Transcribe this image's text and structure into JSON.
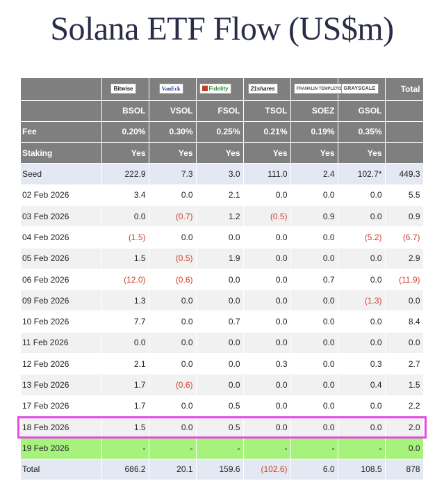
{
  "title": "Solana ETF Flow (US$m)",
  "colors": {
    "header_bg": "#7f7f7f",
    "seed_bg": "#e4e8f2",
    "pending_bg": "#a6f27d",
    "negative": "#d0402a",
    "highlight": "#e34ae6"
  },
  "issuers": [
    "Bitwise",
    "VanEck",
    "Fidelity",
    "21shares",
    "FRANKLIN TEMPLETON",
    "GRAYSCALE"
  ],
  "total_label": "Total",
  "tickers": [
    "BSOL",
    "VSOL",
    "FSOL",
    "TSOL",
    "SOEZ",
    "GSOL"
  ],
  "fee": {
    "label": "Fee",
    "values": [
      "0.20%",
      "0.30%",
      "0.25%",
      "0.21%",
      "0.19%",
      "0.35%"
    ]
  },
  "staking": {
    "label": "Staking",
    "values": [
      "Yes",
      "Yes",
      "Yes",
      "Yes",
      "Yes",
      "Yes"
    ]
  },
  "chart_data": {
    "type": "table",
    "title": "Solana ETF Flow (US$m)",
    "columns": [
      "BSOL",
      "VSOL",
      "FSOL",
      "TSOL",
      "SOEZ",
      "GSOL",
      "Total"
    ],
    "rows": [
      {
        "label": "Seed",
        "cells": [
          "222.9",
          "7.3",
          "3.0",
          "111.0",
          "2.4",
          "102.7*",
          "449.3"
        ]
      },
      {
        "label": "02 Feb 2026",
        "cells": [
          "3.4",
          "0.0",
          "2.1",
          "0.0",
          "0.0",
          "0.0",
          "5.5"
        ]
      },
      {
        "label": "03 Feb 2026",
        "cells": [
          "0.0",
          "(0.7)",
          "1.2",
          "(0.5)",
          "0.9",
          "0.0",
          "0.9"
        ]
      },
      {
        "label": "04 Feb 2026",
        "cells": [
          "(1.5)",
          "0.0",
          "0.0",
          "0.0",
          "0.0",
          "(5.2)",
          "(6.7)"
        ]
      },
      {
        "label": "05 Feb 2026",
        "cells": [
          "1.5",
          "(0.5)",
          "1.9",
          "0.0",
          "0.0",
          "0.0",
          "2.9"
        ]
      },
      {
        "label": "06 Feb 2026",
        "cells": [
          "(12.0)",
          "(0.6)",
          "0.0",
          "0.0",
          "0.7",
          "0.0",
          "(11.9)"
        ]
      },
      {
        "label": "09 Feb 2026",
        "cells": [
          "1.3",
          "0.0",
          "0.0",
          "0.0",
          "0.0",
          "(1.3)",
          "0.0"
        ]
      },
      {
        "label": "10 Feb 2026",
        "cells": [
          "7.7",
          "0.0",
          "0.7",
          "0.0",
          "0.0",
          "0.0",
          "8.4"
        ]
      },
      {
        "label": "11 Feb 2026",
        "cells": [
          "0.0",
          "0.0",
          "0.0",
          "0.0",
          "0.0",
          "0.0",
          "0.0"
        ]
      },
      {
        "label": "12 Feb 2026",
        "cells": [
          "2.1",
          "0.0",
          "0.0",
          "0.3",
          "0.0",
          "0.3",
          "2.7"
        ]
      },
      {
        "label": "13 Feb 2026",
        "cells": [
          "1.7",
          "(0.6)",
          "0.0",
          "0.0",
          "0.0",
          "0.4",
          "1.5"
        ]
      },
      {
        "label": "17 Feb 2026",
        "cells": [
          "1.7",
          "0.0",
          "0.5",
          "0.0",
          "0.0",
          "0.0",
          "2.2"
        ]
      },
      {
        "label": "18 Feb 2026",
        "cells": [
          "1.5",
          "0.0",
          "0.5",
          "0.0",
          "0.0",
          "0.0",
          "2.0"
        ],
        "highlighted": true
      },
      {
        "label": "19 Feb 2026",
        "cells": [
          "-",
          "-",
          "-",
          "-",
          "-",
          "-",
          "0.0"
        ]
      },
      {
        "label": "Total",
        "cells": [
          "686.2",
          "20.1",
          "159.6",
          "(102.6)",
          "6.0",
          "108.5",
          "878"
        ]
      }
    ]
  }
}
